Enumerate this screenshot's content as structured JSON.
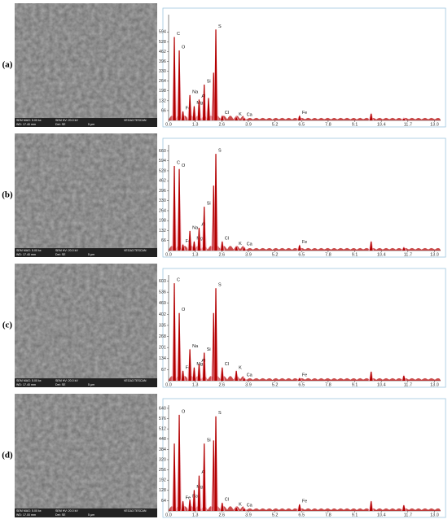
{
  "chart_data": [
    {
      "type": "spectrum",
      "panel": "(a)",
      "color": "#b30000",
      "sem_info": [
        "SEM MAG: 5.00 kx",
        "SEM HV: 20.0 kV",
        "VEGA3 TESCAN",
        "WD: 17.40 mm",
        "Det: SE",
        "5 µm"
      ],
      "xlim": [
        0,
        13.3
      ],
      "ylim": [
        0,
        710
      ],
      "xticks": [
        {
          "value": 0,
          "label": "0.0"
        },
        1.3,
        2.6,
        3.9,
        5.2,
        6.5,
        7.8,
        9.1,
        10.4,
        11.7,
        {
          "value": 13,
          "label": "13.0"
        }
      ],
      "yticks": [
        66,
        132,
        198,
        264,
        330,
        396,
        462,
        528,
        594
      ],
      "categories": [
        "C",
        "O",
        "Fe",
        "Na",
        "Mg",
        "Al",
        "Si",
        null,
        null,
        "S",
        "Cl",
        "K",
        "Ca",
        "Fe",
        null,
        null
      ],
      "x": [
        0.28,
        0.52,
        0.7,
        1.04,
        1.25,
        1.49,
        1.74,
        1.95,
        2.2,
        2.31,
        2.62,
        3.31,
        3.69,
        6.4,
        9.9,
        11.5
      ],
      "values": [
        560,
        470,
        60,
        170,
        95,
        140,
        240,
        150,
        320,
        610,
        30,
        20,
        15,
        30,
        45,
        12
      ]
    },
    {
      "type": "spectrum",
      "panel": "(b)",
      "color": "#b30000",
      "sem_info": [
        "SEM MAG: 5.00 kx",
        "SEM HV: 20.0 kV",
        "VEGA3 TESCAN",
        "WD: 17.40 mm",
        "Det: SE",
        "5 µm"
      ],
      "xlim": [
        0,
        13.3
      ],
      "ylim": [
        0,
        700
      ],
      "xticks": [
        {
          "value": 0,
          "label": "0.0"
        },
        1.3,
        2.6,
        3.9,
        5.2,
        6.5,
        7.8,
        9.1,
        10.4,
        11.7,
        {
          "value": 13,
          "label": "13.0"
        }
      ],
      "yticks": [
        66,
        132,
        198,
        264,
        330,
        396,
        462,
        528,
        594,
        660
      ],
      "categories": [
        "C",
        "O",
        "Fe",
        "Na",
        "Mg",
        "Al",
        "Si",
        null,
        "S",
        "Cl",
        "K",
        "Ca",
        "Fe",
        null,
        null
      ],
      "x": [
        0.28,
        0.52,
        0.7,
        1.04,
        1.25,
        1.49,
        1.74,
        2.2,
        2.31,
        2.62,
        3.31,
        3.69,
        6.4,
        9.9,
        11.5
      ],
      "values": [
        560,
        540,
        40,
        130,
        60,
        150,
        290,
        430,
        640,
        60,
        25,
        20,
        35,
        60,
        20
      ]
    },
    {
      "type": "spectrum",
      "panel": "(c)",
      "color": "#b30000",
      "sem_info": [
        "SEM MAG: 5.00 kx",
        "SEM HV: 20.0 kV",
        "VEGA3 TESCAN",
        "WD: 17.40 mm",
        "Det: SE",
        "5 µm"
      ],
      "xlim": [
        0,
        13.3
      ],
      "ylim": [
        0,
        640
      ],
      "xticks": [
        {
          "value": 0,
          "label": "0.0"
        },
        1.3,
        2.6,
        3.9,
        5.2,
        6.5,
        7.8,
        9.1,
        10.4,
        11.7,
        {
          "value": 13,
          "label": "13.0"
        }
      ],
      "yticks": [
        67,
        134,
        201,
        268,
        335,
        402,
        469,
        536,
        603
      ],
      "categories": [
        "C",
        "O",
        "Fe",
        "Na",
        "Mg",
        "Al",
        "Si",
        null,
        "S",
        "Cl",
        "K",
        "Ca",
        "Fe",
        null,
        null
      ],
      "x": [
        0.28,
        0.52,
        0.7,
        1.04,
        1.25,
        1.49,
        1.74,
        2.2,
        2.31,
        2.62,
        3.31,
        3.69,
        6.4,
        9.9,
        11.5
      ],
      "values": [
        590,
        410,
        60,
        190,
        80,
        100,
        170,
        410,
        560,
        80,
        60,
        15,
        15,
        55,
        30
      ]
    },
    {
      "type": "spectrum",
      "panel": "(d)",
      "color": "#b30000",
      "sem_info": [
        "SEM MAG: 5.00 kx",
        "SEM HV: 20.0 kV",
        "VEGA3 TESCAN",
        "WD: 17.00 mm",
        "Det: SE",
        "5 µm"
      ],
      "xlim": [
        0,
        13.3
      ],
      "ylim": [
        0,
        660
      ],
      "xticks": [
        {
          "value": 0,
          "label": "0.0"
        },
        1.3,
        2.6,
        3.9,
        5.2,
        6.5,
        7.8,
        9.1,
        10.4,
        11.7,
        {
          "value": 13,
          "label": "13.0"
        }
      ],
      "yticks": [
        64,
        128,
        192,
        256,
        320,
        384,
        448,
        512,
        576,
        640
      ],
      "categories": [
        null,
        "O",
        "Fe",
        "Na",
        "Mg",
        "Al",
        "Si",
        null,
        "S",
        "Cl",
        "K",
        "Ca",
        "Fe",
        null,
        null
      ],
      "x": [
        0.28,
        0.52,
        0.7,
        1.04,
        1.25,
        1.49,
        1.74,
        2.2,
        2.31,
        2.62,
        3.31,
        3.69,
        6.4,
        9.9,
        11.5
      ],
      "values": [
        420,
        600,
        60,
        70,
        130,
        220,
        420,
        440,
        590,
        50,
        20,
        15,
        40,
        60,
        35
      ]
    }
  ]
}
